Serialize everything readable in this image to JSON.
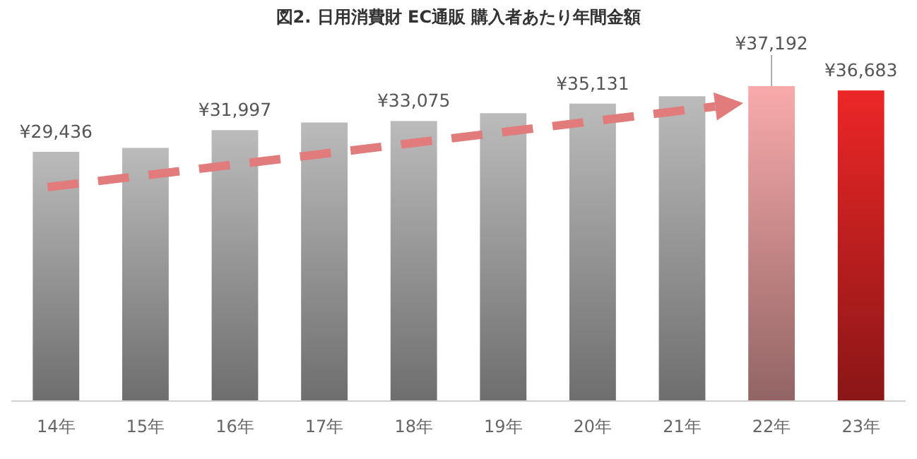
{
  "chart_data": {
    "type": "bar",
    "title": "図2. 日用消費財 EC通販 購入者あたり年間金額",
    "categories": [
      "14年",
      "15年",
      "16年",
      "17年",
      "18年",
      "19年",
      "20年",
      "21年",
      "22年",
      "23年"
    ],
    "values": [
      29436,
      29900,
      31997,
      32900,
      33075,
      34000,
      35131,
      36000,
      37192,
      36683
    ],
    "value_labels": [
      "¥29,436",
      null,
      "¥31,997",
      null,
      "¥33,075",
      null,
      "¥35,131",
      null,
      "¥37,192",
      "¥36,683"
    ],
    "colors": [
      "#a8a8a8",
      "#a8a8a8",
      "#a8a8a8",
      "#a8a8a8",
      "#a8a8a8",
      "#a8a8a8",
      "#a8a8a8",
      "#a8a8a8",
      "#e0999a",
      "#d42222"
    ],
    "grid": false
  }
}
